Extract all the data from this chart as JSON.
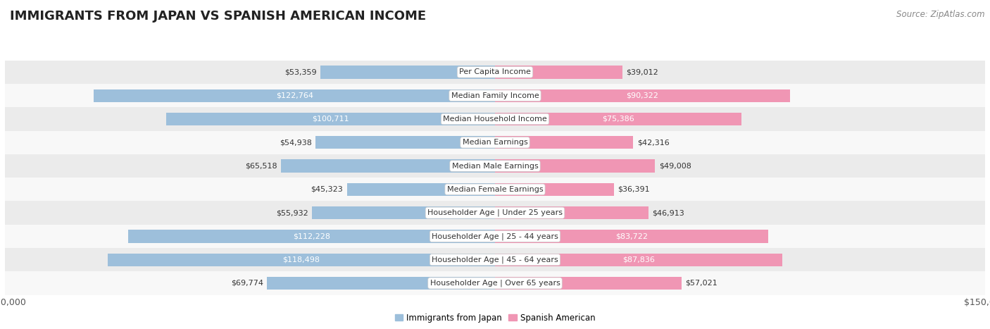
{
  "title": "IMMIGRANTS FROM JAPAN VS SPANISH AMERICAN INCOME",
  "source": "Source: ZipAtlas.com",
  "categories": [
    "Per Capita Income",
    "Median Family Income",
    "Median Household Income",
    "Median Earnings",
    "Median Male Earnings",
    "Median Female Earnings",
    "Householder Age | Under 25 years",
    "Householder Age | 25 - 44 years",
    "Householder Age | 45 - 64 years",
    "Householder Age | Over 65 years"
  ],
  "japan_values": [
    53359,
    122764,
    100711,
    54938,
    65518,
    45323,
    55932,
    112228,
    118498,
    69774
  ],
  "spanish_values": [
    39012,
    90322,
    75386,
    42316,
    49008,
    36391,
    46913,
    83722,
    87836,
    57021
  ],
  "japan_color": "#9dbfdb",
  "spanish_color": "#f096b4",
  "japan_label": "Immigrants from Japan",
  "spanish_label": "Spanish American",
  "max_value": 150000,
  "bar_height": 0.55,
  "row_colors": [
    "#ebebeb",
    "#f8f8f8"
  ],
  "title_fontsize": 13,
  "label_fontsize": 8,
  "tick_fontsize": 9,
  "source_fontsize": 8.5,
  "background_color": "#ffffff",
  "white_text_threshold": 70000
}
